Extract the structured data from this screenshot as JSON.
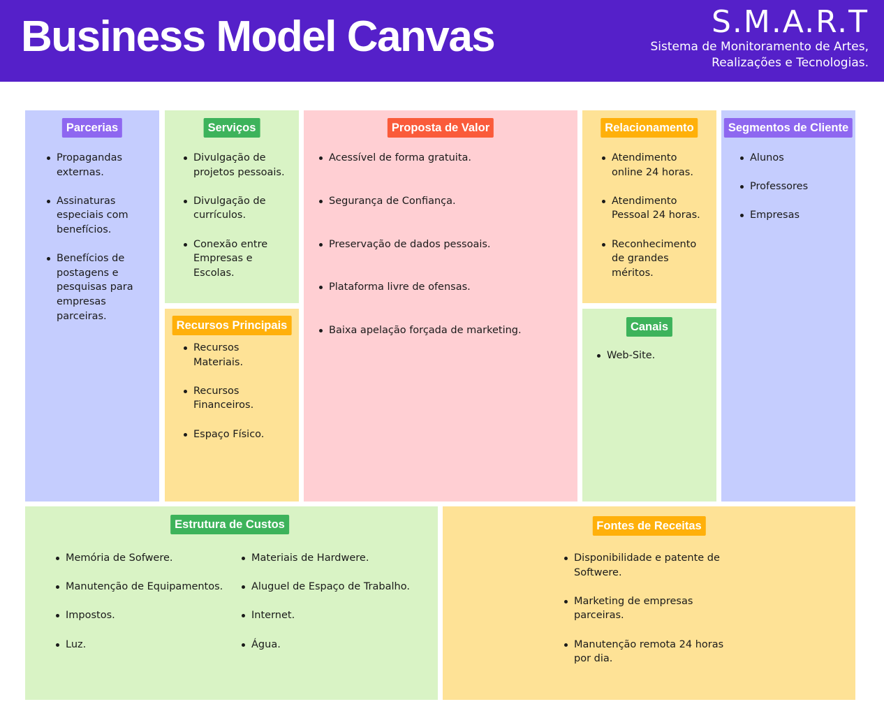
{
  "header": {
    "title": "Business Model Canvas",
    "brand": "S.M.A.R.T",
    "subtitle_line1": "Sistema de Monitoramento de Artes,",
    "subtitle_line2": "Realizações e Tecnologias."
  },
  "colors": {
    "header_bg": "#5520c9",
    "blue": "#c5cdfe",
    "green": "#d9f3c5",
    "pink": "#ffcfd3",
    "yellow": "#fee296",
    "tag_purple": "#8e67f0",
    "tag_green": "#3db35b",
    "tag_red": "#fa5b3a",
    "tag_orange": "#ffb00a"
  },
  "parcerias": {
    "title": "Parcerias",
    "items": [
      "Propagandas externas.",
      "Assinaturas especiais com benefícios.",
      "Benefícios de postagens e pesquisas para empresas parceiras."
    ]
  },
  "servicos": {
    "title": "Serviços",
    "items": [
      "Divulgação de projetos pessoais.",
      "Divulgação de currículos.",
      "Conexão entre Empresas e Escolas."
    ]
  },
  "recursos": {
    "title": "Recursos Principais",
    "items": [
      "Recursos Materiais.",
      "Recursos Financeiros.",
      "Espaço Físico."
    ]
  },
  "proposta": {
    "title": "Proposta de Valor",
    "items": [
      "Acessível de forma gratuita.",
      "Segurança de Confiança.",
      "Preservação de dados pessoais.",
      "Plataforma livre de ofensas.",
      "Baixa apelação forçada de marketing."
    ]
  },
  "relacionamento": {
    "title": "Relacionamento",
    "items": [
      "Atendimento online 24 horas.",
      "Atendimento Pessoal 24 horas.",
      "Reconhecimento de grandes méritos."
    ]
  },
  "canais": {
    "title": "Canais",
    "items": [
      "Web-Site."
    ]
  },
  "segmentos": {
    "title": "Segmentos de Cliente",
    "items": [
      "Alunos",
      "Professores",
      "Empresas"
    ]
  },
  "custos": {
    "title": "Estrutura de Custos",
    "items_left": [
      "Memória de Sofwere.",
      "Manutenção de Equipamentos.",
      "Impostos.",
      "Luz."
    ],
    "items_right": [
      "Materiais de Hardwere.",
      "Aluguel de Espaço de Trabalho.",
      "Internet.",
      "Água."
    ]
  },
  "receitas": {
    "title": "Fontes de Receitas",
    "items": [
      "Disponibilidade e patente de Softwere.",
      "Marketing de empresas parceiras.",
      "Manutenção remota 24 horas por dia."
    ]
  }
}
